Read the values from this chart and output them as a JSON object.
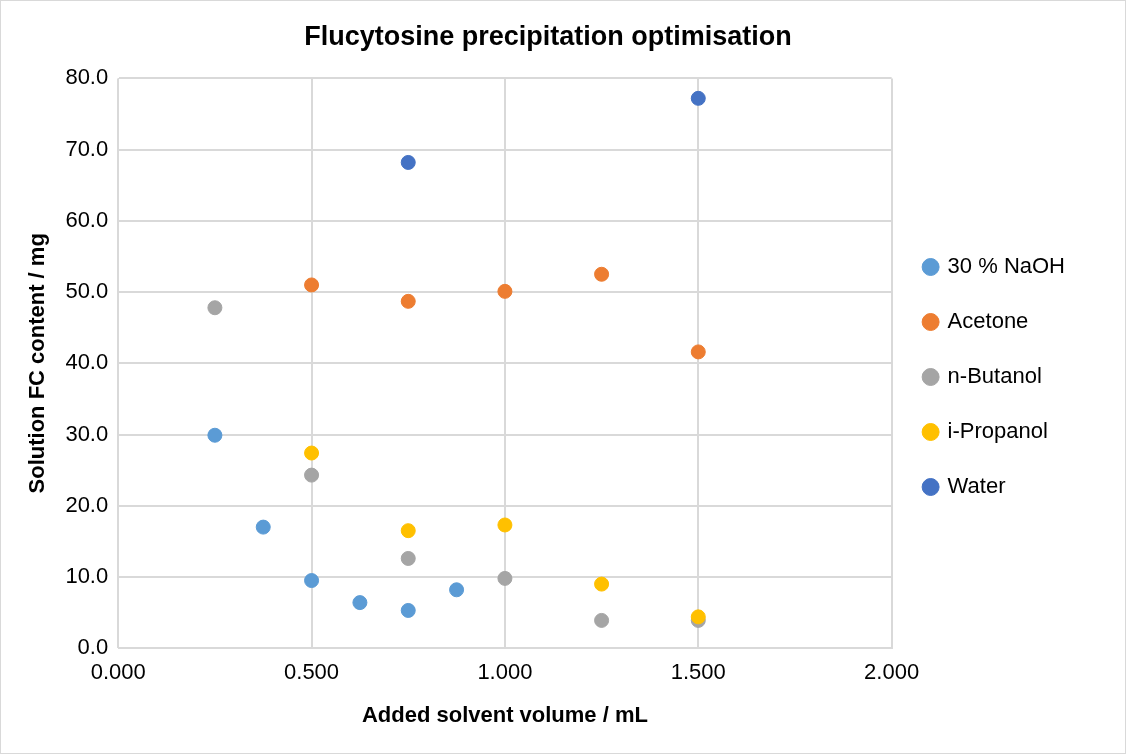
{
  "chart_data": {
    "type": "scatter",
    "title": "Flucytosine precipitation optimisation",
    "xlabel": "Added solvent volume / mL",
    "ylabel": "Solution FC content / mg",
    "xlim": [
      0,
      2
    ],
    "xticks": [
      {
        "value": 0,
        "label": "0.000"
      },
      {
        "value": 0.5,
        "label": "0.500"
      },
      {
        "value": 1,
        "label": "1.000"
      },
      {
        "value": 1.5,
        "label": "1.500"
      },
      {
        "value": 2,
        "label": "2.000"
      }
    ],
    "ylim": [
      0,
      80
    ],
    "yticks": [
      {
        "value": 0,
        "label": "0.0"
      },
      {
        "value": 10,
        "label": "10.0"
      },
      {
        "value": 20,
        "label": "20.0"
      },
      {
        "value": 30,
        "label": "30.0"
      },
      {
        "value": 40,
        "label": "40.0"
      },
      {
        "value": 50,
        "label": "50.0"
      },
      {
        "value": 60,
        "label": "60.0"
      },
      {
        "value": 70,
        "label": "70.0"
      },
      {
        "value": 80,
        "label": "80.0"
      }
    ],
    "grid": true,
    "legend": "right",
    "marker": "circle",
    "series": [
      {
        "name": "30 % NaOH",
        "color": "#5b9bd5",
        "x": [
          0.25,
          0.375,
          0.5,
          0.625,
          0.75,
          0.875
        ],
        "values": [
          29.9,
          17.0,
          9.5,
          6.4,
          5.3,
          8.2
        ]
      },
      {
        "name": "Acetone",
        "color": "#ed7d31",
        "x": [
          0.5,
          0.75,
          1.0,
          1.25,
          1.5
        ],
        "values": [
          51.0,
          48.7,
          50.1,
          52.5,
          41.6
        ]
      },
      {
        "name": "n-Butanol",
        "color": "#a5a5a5",
        "x": [
          0.25,
          0.5,
          0.75,
          1.0,
          1.25,
          1.5
        ],
        "values": [
          47.8,
          24.3,
          12.6,
          9.8,
          3.9,
          3.9
        ]
      },
      {
        "name": "i-Propanol",
        "color": "#ffc000",
        "x": [
          0.5,
          0.75,
          1.0,
          1.25,
          1.5
        ],
        "values": [
          27.4,
          16.5,
          17.3,
          9.0,
          4.4
        ]
      },
      {
        "name": "Water",
        "color": "#4472c4",
        "x": [
          0.75,
          1.5
        ],
        "values": [
          68.2,
          77.2
        ]
      }
    ]
  }
}
